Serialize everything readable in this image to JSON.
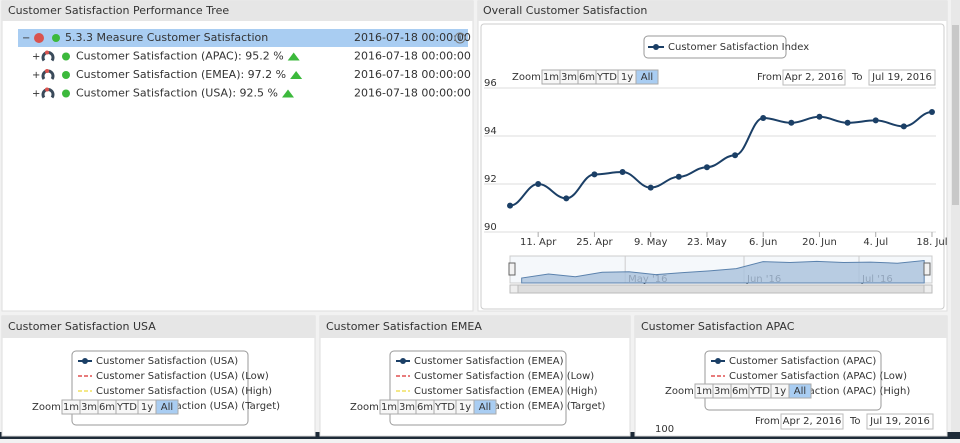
{
  "tree_panel": {
    "title": "Customer Satisfaction Performance Tree",
    "rows": [
      {
        "label": "5.3.3 Measure Customer Satisfaction",
        "date": "2016-07-18 00:00:00"
      },
      {
        "label": "Customer Satisfaction (APAC): 95.2 %",
        "date": "2016-07-18 00:00:00"
      },
      {
        "label": "Customer Satisfaction (EMEA): 97.2 %",
        "date": "2016-07-18 00:00:00"
      },
      {
        "label": "Customer Satisfaction (USA): 92.5 %",
        "date": "2016-07-18 00:00:00"
      }
    ]
  },
  "chart_data": {
    "type": "line",
    "title": "Overall Customer Satisfaction",
    "x": [
      "2016-04-04",
      "2016-04-11",
      "2016-04-18",
      "2016-04-25",
      "2016-05-02",
      "2016-05-09",
      "2016-05-16",
      "2016-05-23",
      "2016-05-30",
      "2016-06-06",
      "2016-06-13",
      "2016-06-20",
      "2016-06-27",
      "2016-07-04",
      "2016-07-11",
      "2016-07-18"
    ],
    "series": [
      {
        "name": "Customer Satisfaction Index",
        "color": "#1b3f66",
        "values": [
          91.1,
          92.0,
          91.4,
          92.4,
          92.5,
          91.85,
          92.3,
          92.7,
          93.2,
          94.75,
          94.55,
          94.8,
          94.55,
          94.65,
          94.4,
          95.0
        ]
      }
    ],
    "xlim": [
      "2016-04-02",
      "2016-07-19"
    ],
    "xticks": [
      {
        "value": "2016-04-11",
        "label": "11. Apr"
      },
      {
        "value": "2016-04-25",
        "label": "25. Apr"
      },
      {
        "value": "2016-05-09",
        "label": "9. May"
      },
      {
        "value": "2016-05-23",
        "label": "23. May"
      },
      {
        "value": "2016-06-06",
        "label": "6. Jun"
      },
      {
        "value": "2016-06-20",
        "label": "20. Jun"
      },
      {
        "value": "2016-07-04",
        "label": "4. Jul"
      },
      {
        "value": "2016-07-18",
        "label": "18. Jul"
      }
    ],
    "ylim": [
      90,
      96
    ],
    "yticks": [
      90,
      92,
      94,
      96
    ],
    "grid": true,
    "navigator_ticks": [
      {
        "value": "2016-05-01",
        "label": "May '16"
      },
      {
        "value": "2016-06-01",
        "label": "Jun '16"
      },
      {
        "value": "2016-07-01",
        "label": "Jul '16"
      }
    ],
    "zoom_label": "Zoom",
    "zoom_buttons": [
      "1m",
      "3m",
      "6m",
      "YTD",
      "1y",
      "All"
    ],
    "active_zoom": "All",
    "from_label": "From",
    "from_date": "Apr 2, 2016",
    "to_label": "To",
    "to_date": "Jul 19, 2016"
  },
  "panels": [
    {
      "title": "Customer Satisfaction USA",
      "legend": [
        {
          "name": "Customer Satisfaction (USA)",
          "color": "#1b3f66"
        },
        {
          "name": "Customer Satisfaction (USA) (Low)",
          "color": "#e05050"
        },
        {
          "name": "Customer Satisfaction (USA) (High)",
          "color": "#f0e060"
        },
        {
          "name": "Customer Satisfaction (USA) (Target)",
          "color": "#6a9a40"
        }
      ]
    },
    {
      "title": "Customer Satisfaction EMEA",
      "legend": [
        {
          "name": "Customer Satisfaction (EMEA)",
          "color": "#1b3f66"
        },
        {
          "name": "Customer Satisfaction (EMEA) (Low)",
          "color": "#e05050"
        },
        {
          "name": "Customer Satisfaction (EMEA) (High)",
          "color": "#f0e060"
        },
        {
          "name": "Customer Satisfaction (EMEA) (Target)",
          "color": "#6a9a40"
        }
      ]
    },
    {
      "title": "Customer Satisfaction APAC",
      "legend": [
        {
          "name": "Customer Satisfaction (APAC)",
          "color": "#1b3f66"
        },
        {
          "name": "Customer Satisfaction (APAC) (Low)",
          "color": "#e05050"
        },
        {
          "name": "Customer Satisfaction (APAC) (High)",
          "color": "#f0e060"
        }
      ],
      "from_label": "From",
      "from_date": "Apr 2, 2016",
      "to_label": "To",
      "to_date": "Jul 19, 2016",
      "ytick": 100
    }
  ]
}
